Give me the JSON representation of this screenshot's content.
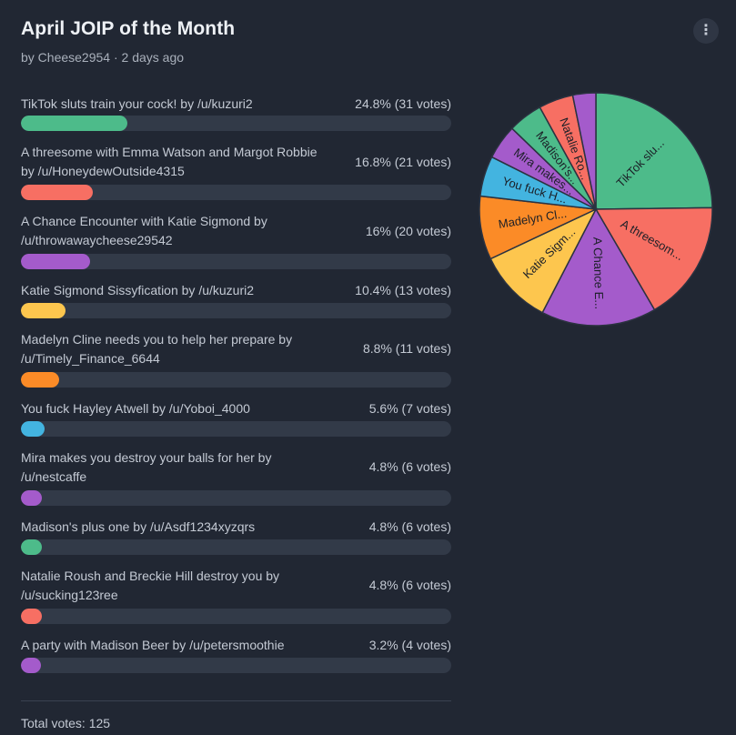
{
  "poll": {
    "title": "April JOIP of the Month",
    "byline": "by Cheese2954 · 2 days ago",
    "menu_icon": "⋮",
    "total_label": "Total votes: 125"
  },
  "options": [
    {
      "label": "TikTok sluts train your cock! by /u/kuzuri2",
      "result": "24.8% (31 votes)",
      "color": "#4dbb8a"
    },
    {
      "label": "A threesome with Emma Watson and Margot Robbie by /u/HoneydewOutside4315",
      "result": "16.8% (21 votes)",
      "color": "#f76f63"
    },
    {
      "label": "A Chance Encounter with Katie Sigmond by /u/throwawaycheese29542",
      "result": "16% (20 votes)",
      "color": "#a45bcb"
    },
    {
      "label": "Katie Sigmond Sissyfication by /u/kuzuri2",
      "result": "10.4% (13 votes)",
      "color": "#fdc64e"
    },
    {
      "label": "Madelyn Cline needs you to help her prepare by /u/Timely_Finance_6644",
      "result": "8.8% (11 votes)",
      "color": "#fb8b27"
    },
    {
      "label": "You fuck Hayley Atwell by /u/Yoboi_4000",
      "result": "5.6% (7 votes)",
      "color": "#43b4e0"
    },
    {
      "label": "Mira makes you destroy your balls for her by /u/nestcaffe",
      "result": "4.8% (6 votes)",
      "color": "#a45bcb"
    },
    {
      "label": "Madison's plus one by /u/Asdf1234xyzqrs",
      "result": "4.8% (6 votes)",
      "color": "#4dbb8a"
    },
    {
      "label": "Natalie Roush and Breckie Hill destroy you by /u/sucking123ree",
      "result": "4.8% (6 votes)",
      "color": "#f76f63"
    },
    {
      "label": "A party with Madison Beer by /u/petersmoothie",
      "result": "3.2% (4 votes)",
      "color": "#a45bcb"
    }
  ],
  "chart_data": {
    "type": "pie",
    "categories": [
      "TikTok sluts train your cock! by /u/kuzuri2",
      "A threesome with Emma Watson and Margot Robbie by /u/HoneydewOutside4315",
      "A Chance Encounter with Katie Sigmond by /u/throwawaycheese29542",
      "Katie Sigmond Sissyfication by /u/kuzuri2",
      "Madelyn Cline needs you to help her prepare by /u/Timely_Finance_6644",
      "You fuck Hayley Atwell by /u/Yoboi_4000",
      "Mira makes you destroy your balls for her by /u/nestcaffe",
      "Madison's plus one by /u/Asdf1234xyzqrs",
      "Natalie Roush and Breckie Hill destroy you by /u/sucking123ree",
      "A party with Madison Beer by /u/petersmoothie"
    ],
    "slice_labels": [
      "TikTok slu...",
      "A threesom...",
      "A Chance E...",
      "Katie Sigm...",
      "Madelyn Cl...",
      "You fuck H...",
      "Mira makes...",
      "Madison's...",
      "Natalie Ro...",
      ""
    ],
    "values": [
      31,
      21,
      20,
      13,
      11,
      7,
      6,
      6,
      6,
      4
    ],
    "percentages": [
      24.8,
      16.8,
      16,
      10.4,
      8.8,
      5.6,
      4.8,
      4.8,
      4.8,
      3.2
    ],
    "colors": [
      "#4dbb8a",
      "#f76f63",
      "#a45bcb",
      "#fdc64e",
      "#fb8b27",
      "#43b4e0",
      "#a45bcb",
      "#4dbb8a",
      "#f76f63",
      "#a45bcb"
    ],
    "total": 125
  }
}
